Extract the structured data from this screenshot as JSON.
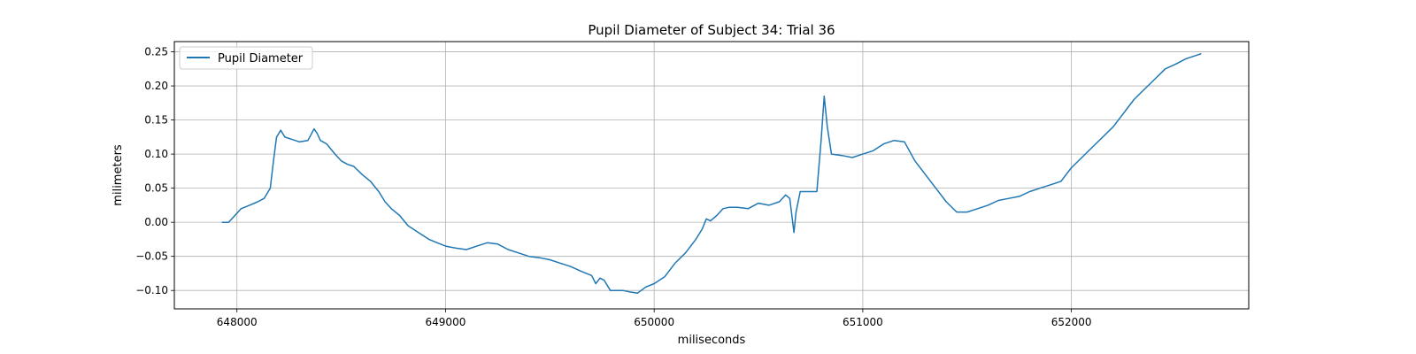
{
  "chart_data": {
    "type": "line",
    "title": "Pupil Diameter of Subject 34: Trial 36",
    "xlabel": "miliseconds",
    "ylabel": "milimeters",
    "xlim": [
      647700,
      652850
    ],
    "ylim": [
      -0.127,
      0.265
    ],
    "xticks": [
      648000,
      649000,
      650000,
      651000,
      652000
    ],
    "xtick_labels": [
      "648000",
      "649000",
      "650000",
      "651000",
      "652000"
    ],
    "yticks": [
      -0.1,
      -0.05,
      0.0,
      0.05,
      0.1,
      0.15,
      0.2,
      0.25
    ],
    "ytick_labels": [
      "−0.10",
      "−0.05",
      "0.00",
      "0.05",
      "0.10",
      "0.15",
      "0.20",
      "0.25"
    ],
    "grid": true,
    "legend_position": "top-left",
    "series": [
      {
        "name": "Pupil Diameter",
        "color": "#1f77b4",
        "x": [
          647930,
          647960,
          647990,
          648020,
          648060,
          648100,
          648130,
          648160,
          648175,
          648190,
          648210,
          648230,
          648260,
          648300,
          648340,
          648370,
          648385,
          648400,
          648430,
          648470,
          648500,
          648530,
          648560,
          648600,
          648640,
          648680,
          648710,
          648740,
          648780,
          648820,
          648870,
          648920,
          648960,
          649000,
          649050,
          649100,
          649150,
          649200,
          649250,
          649300,
          649350,
          649400,
          649450,
          649500,
          649550,
          649600,
          649650,
          649700,
          649720,
          649740,
          649760,
          649790,
          649810,
          649850,
          649880,
          649920,
          649960,
          650000,
          650050,
          650100,
          650150,
          650200,
          650230,
          650250,
          650270,
          650300,
          650330,
          650360,
          650400,
          650450,
          650500,
          650550,
          650600,
          650630,
          650650,
          650670,
          650680,
          650700,
          650750,
          650780,
          650800,
          650815,
          650830,
          650850,
          650900,
          650950,
          651000,
          651050,
          651100,
          651150,
          651200,
          651250,
          651300,
          651350,
          651400,
          651450,
          651500,
          651550,
          651600,
          651650,
          651700,
          651750,
          651800,
          651850,
          651900,
          651950,
          652000,
          652050,
          652100,
          652150,
          652200,
          652250,
          652300,
          652350,
          652400,
          652450,
          652500,
          652550,
          652600,
          652620
        ],
        "values": [
          0.0,
          0.0,
          0.01,
          0.02,
          0.025,
          0.03,
          0.035,
          0.05,
          0.09,
          0.125,
          0.135,
          0.125,
          0.122,
          0.118,
          0.12,
          0.137,
          0.13,
          0.12,
          0.115,
          0.1,
          0.09,
          0.085,
          0.082,
          0.07,
          0.06,
          0.045,
          0.03,
          0.02,
          0.01,
          -0.005,
          -0.015,
          -0.025,
          -0.03,
          -0.035,
          -0.038,
          -0.04,
          -0.035,
          -0.03,
          -0.032,
          -0.04,
          -0.045,
          -0.05,
          -0.052,
          -0.055,
          -0.06,
          -0.065,
          -0.072,
          -0.078,
          -0.09,
          -0.082,
          -0.085,
          -0.1,
          -0.1,
          -0.1,
          -0.102,
          -0.104,
          -0.095,
          -0.09,
          -0.08,
          -0.06,
          -0.045,
          -0.025,
          -0.01,
          0.005,
          0.002,
          0.01,
          0.02,
          0.022,
          0.022,
          0.02,
          0.028,
          0.025,
          0.03,
          0.04,
          0.035,
          -0.015,
          0.015,
          0.045,
          0.045,
          0.045,
          0.12,
          0.185,
          0.14,
          0.1,
          0.098,
          0.095,
          0.1,
          0.105,
          0.115,
          0.12,
          0.118,
          0.09,
          0.07,
          0.05,
          0.03,
          0.015,
          0.015,
          0.02,
          0.025,
          0.032,
          0.035,
          0.038,
          0.045,
          0.05,
          0.055,
          0.06,
          0.08,
          0.095,
          0.11,
          0.125,
          0.14,
          0.16,
          0.18,
          0.195,
          0.21,
          0.225,
          0.232,
          0.24,
          0.245,
          0.247
        ]
      }
    ]
  }
}
